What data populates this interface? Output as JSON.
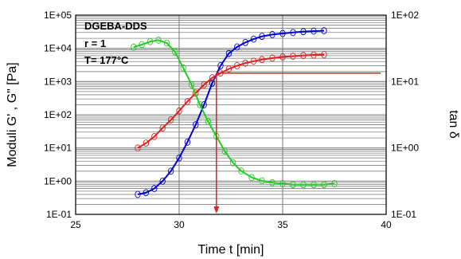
{
  "chart_data": {
    "type": "scatter",
    "title": "",
    "xlabel": "Time t [min]",
    "ylabel": "Moduli G' , G\" [Pa]",
    "y2label": "tan δ",
    "xlim": [
      25,
      40
    ],
    "ylim": [
      0.1,
      100000
    ],
    "y2lim": [
      0.1,
      100
    ],
    "yscale": "log",
    "y2scale": "log",
    "grid": true,
    "x_ticks": [
      "25",
      "30",
      "35",
      "40"
    ],
    "y_ticks": [
      "1E-01",
      "1E+00",
      "1E+01",
      "1E+02",
      "1E+03",
      "1E+04",
      "1E+05"
    ],
    "y2_ticks": [
      "1E-01",
      "1E+00",
      "1E+01",
      "1E+02"
    ],
    "annotations": [
      "DGEBA-DDS",
      "r = 1",
      "T= 177°C"
    ],
    "gel_point": {
      "x": 31.8,
      "G": 1800
    },
    "series": [
      {
        "color": "#0000cc",
        "axis": "left",
        "x": [
          28.0,
          28.4,
          28.8,
          29.2,
          29.6,
          30.0,
          30.4,
          30.8,
          31.2,
          31.6,
          32.0,
          32.4,
          32.8,
          33.2,
          33.6,
          34.0,
          34.5,
          35.0,
          35.5,
          36.0,
          36.5,
          37.0
        ],
        "values": [
          0.4,
          0.45,
          0.6,
          1.0,
          2.0,
          5.0,
          15,
          50,
          200,
          900,
          3000,
          7000,
          11000,
          15000,
          19000,
          23000,
          26000,
          28000,
          30000,
          32000,
          33000,
          34000
        ]
      },
      {
        "color": "#dd2222",
        "axis": "left",
        "x": [
          28.0,
          28.4,
          28.8,
          29.2,
          29.6,
          30.0,
          30.4,
          30.8,
          31.2,
          31.6,
          32.0,
          32.4,
          32.8,
          33.2,
          33.6,
          34.0,
          34.5,
          35.0,
          35.5,
          36.0,
          36.5,
          37.0
        ],
        "values": [
          10,
          14,
          22,
          40,
          70,
          130,
          250,
          450,
          800,
          1300,
          1800,
          2400,
          3000,
          3600,
          4100,
          4600,
          5100,
          5500,
          5800,
          6100,
          6300,
          6500
        ]
      },
      {
        "color": "#22cc22",
        "axis": "right",
        "x": [
          27.8,
          28.2,
          28.6,
          29.0,
          29.4,
          29.8,
          30.2,
          30.6,
          31.0,
          31.4,
          31.8,
          32.2,
          32.6,
          33.0,
          33.5,
          34.0,
          34.5,
          35.0,
          35.5,
          36.0,
          36.5,
          37.0,
          37.5
        ],
        "values": [
          33,
          36,
          40,
          42,
          38,
          28,
          16,
          9,
          4.5,
          2.5,
          1.5,
          0.9,
          0.6,
          0.45,
          0.36,
          0.32,
          0.3,
          0.29,
          0.28,
          0.28,
          0.28,
          0.28,
          0.29
        ]
      }
    ]
  }
}
